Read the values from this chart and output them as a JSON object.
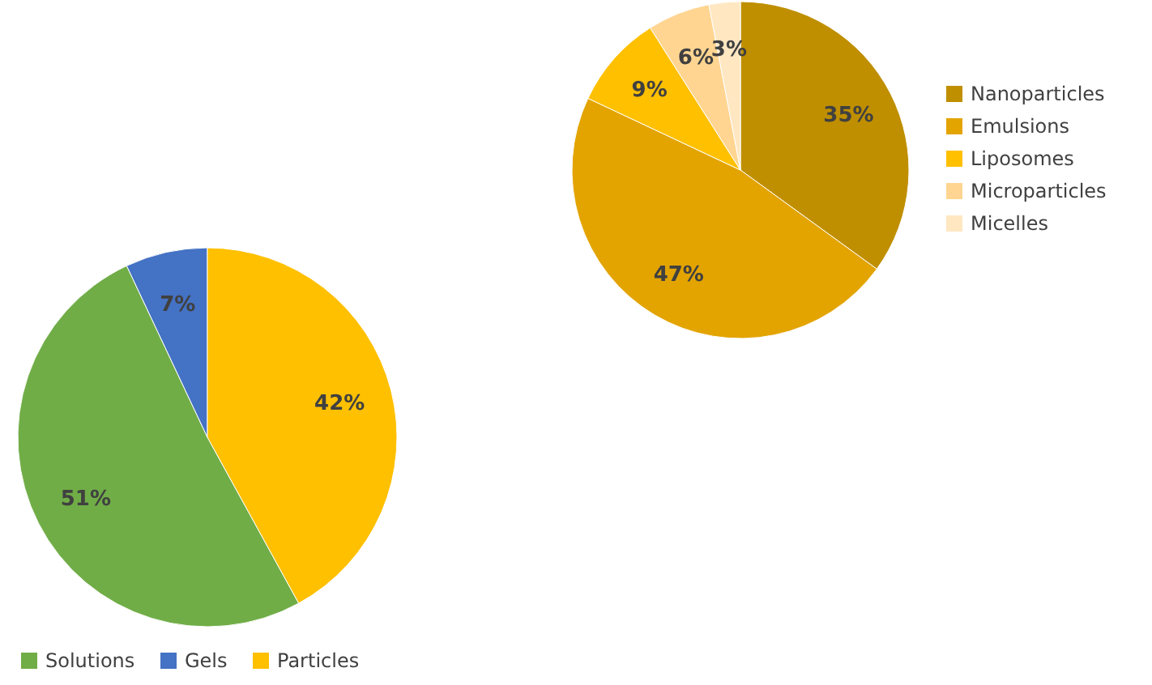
{
  "chart_data": [
    {
      "type": "pie",
      "categories": [
        "Solutions",
        "Gels",
        "Particles"
      ],
      "values": [
        51,
        7,
        42
      ],
      "colors": [
        "#70ad47",
        "#4472c4",
        "#ffc000"
      ],
      "value_labels": [
        "51%",
        "7%",
        "42%"
      ],
      "legend": "bottom"
    },
    {
      "type": "pie",
      "categories": [
        "Nanoparticles",
        "Emulsions",
        "Liposomes",
        "Microparticles",
        "Micelles"
      ],
      "values": [
        35,
        47,
        9,
        6,
        3
      ],
      "colors": [
        "#bf8f00",
        "#e3a400",
        "#ffc000",
        "#ffd591",
        "#ffe7c2"
      ],
      "value_labels": [
        "35%",
        "47%",
        "9%",
        "6%",
        "3%"
      ],
      "legend": "right"
    }
  ]
}
